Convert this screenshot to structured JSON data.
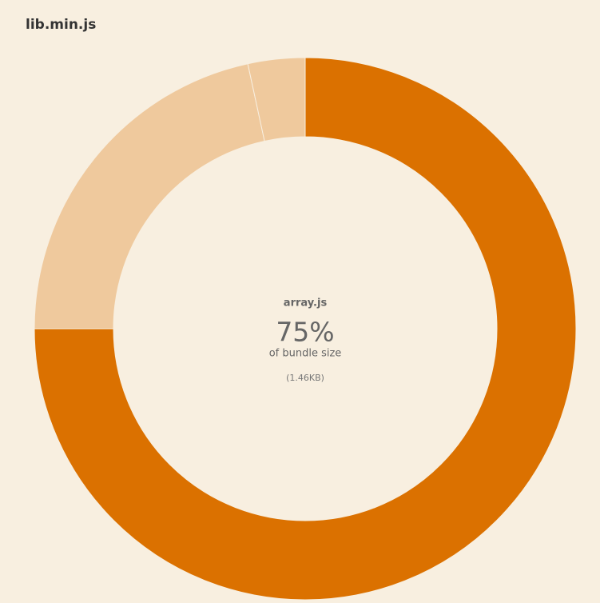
{
  "chart_data": {
    "type": "pie",
    "title": "lib.min.js",
    "categories": [
      "array.js",
      null,
      null
    ],
    "values": [
      75,
      21.6,
      3.4
    ],
    "value_labels": [
      "75%",
      null,
      null
    ],
    "colors": [
      "#db7100",
      "#efc99d",
      "#efc99d"
    ],
    "caption": "of bundle size",
    "size_label": "(1.46KB)"
  }
}
